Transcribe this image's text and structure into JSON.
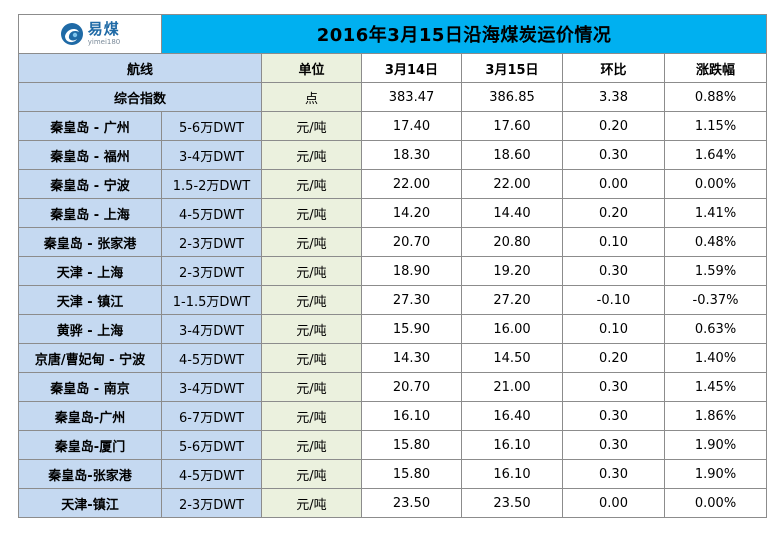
{
  "logo": {
    "brand": "易煤",
    "sub": "yimei180"
  },
  "title": "2016年3月15日沿海煤炭运价情况",
  "headers": {
    "route": "航线",
    "unit": "单位",
    "d1": "3月14日",
    "d2": "3月15日",
    "chg": "环比",
    "pct": "涨跌幅"
  },
  "index_row": {
    "label": "综合指数",
    "unit": "点",
    "d1": "383.47",
    "d2": "386.85",
    "chg": "3.38",
    "pct": "0.88%"
  },
  "rows": [
    {
      "route": "秦皇岛 - 广州",
      "ship": "5-6万DWT",
      "unit": "元/吨",
      "d1": "17.40",
      "d2": "17.60",
      "chg": "0.20",
      "pct": "1.15%"
    },
    {
      "route": "秦皇岛 - 福州",
      "ship": "3-4万DWT",
      "unit": "元/吨",
      "d1": "18.30",
      "d2": "18.60",
      "chg": "0.30",
      "pct": "1.64%"
    },
    {
      "route": "秦皇岛 - 宁波",
      "ship": "1.5-2万DWT",
      "unit": "元/吨",
      "d1": "22.00",
      "d2": "22.00",
      "chg": "0.00",
      "pct": "0.00%"
    },
    {
      "route": "秦皇岛 - 上海",
      "ship": "4-5万DWT",
      "unit": "元/吨",
      "d1": "14.20",
      "d2": "14.40",
      "chg": "0.20",
      "pct": "1.41%"
    },
    {
      "route": "秦皇岛 - 张家港",
      "ship": "2-3万DWT",
      "unit": "元/吨",
      "d1": "20.70",
      "d2": "20.80",
      "chg": "0.10",
      "pct": "0.48%"
    },
    {
      "route": "天津 - 上海",
      "ship": "2-3万DWT",
      "unit": "元/吨",
      "d1": "18.90",
      "d2": "19.20",
      "chg": "0.30",
      "pct": "1.59%"
    },
    {
      "route": "天津 - 镇江",
      "ship": "1-1.5万DWT",
      "unit": "元/吨",
      "d1": "27.30",
      "d2": "27.20",
      "chg": "-0.10",
      "pct": "-0.37%"
    },
    {
      "route": "黄骅 - 上海",
      "ship": "3-4万DWT",
      "unit": "元/吨",
      "d1": "15.90",
      "d2": "16.00",
      "chg": "0.10",
      "pct": "0.63%"
    },
    {
      "route": "京唐/曹妃甸 - 宁波",
      "ship": "4-5万DWT",
      "unit": "元/吨",
      "d1": "14.30",
      "d2": "14.50",
      "chg": "0.20",
      "pct": "1.40%"
    },
    {
      "route": "秦皇岛 - 南京",
      "ship": "3-4万DWT",
      "unit": "元/吨",
      "d1": "20.70",
      "d2": "21.00",
      "chg": "0.30",
      "pct": "1.45%"
    },
    {
      "route": "秦皇岛-广州",
      "ship": "6-7万DWT",
      "unit": "元/吨",
      "d1": "16.10",
      "d2": "16.40",
      "chg": "0.30",
      "pct": "1.86%"
    },
    {
      "route": "秦皇岛-厦门",
      "ship": "5-6万DWT",
      "unit": "元/吨",
      "d1": "15.80",
      "d2": "16.10",
      "chg": "0.30",
      "pct": "1.90%"
    },
    {
      "route": "秦皇岛-张家港",
      "ship": "4-5万DWT",
      "unit": "元/吨",
      "d1": "15.80",
      "d2": "16.10",
      "chg": "0.30",
      "pct": "1.90%"
    },
    {
      "route": "天津-镇江",
      "ship": "2-3万DWT",
      "unit": "元/吨",
      "d1": "23.50",
      "d2": "23.50",
      "chg": "0.00",
      "pct": "0.00%"
    }
  ]
}
